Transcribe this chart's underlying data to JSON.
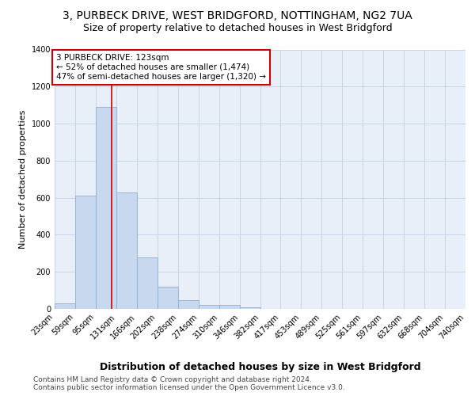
{
  "title1": "3, PURBECK DRIVE, WEST BRIDGFORD, NOTTINGHAM, NG2 7UA",
  "title2": "Size of property relative to detached houses in West Bridgford",
  "xlabel": "Distribution of detached houses by size in West Bridgford",
  "ylabel": "Number of detached properties",
  "bin_labels": [
    "23sqm",
    "59sqm",
    "95sqm",
    "131sqm",
    "166sqm",
    "202sqm",
    "238sqm",
    "274sqm",
    "310sqm",
    "346sqm",
    "382sqm",
    "417sqm",
    "453sqm",
    "489sqm",
    "525sqm",
    "561sqm",
    "597sqm",
    "632sqm",
    "668sqm",
    "704sqm",
    "740sqm"
  ],
  "bin_edges": [
    23,
    59,
    95,
    131,
    166,
    202,
    238,
    274,
    310,
    346,
    382,
    417,
    453,
    489,
    525,
    561,
    597,
    632,
    668,
    704,
    740
  ],
  "bar_heights": [
    30,
    610,
    1090,
    630,
    280,
    120,
    45,
    20,
    20,
    10,
    0,
    0,
    0,
    0,
    0,
    0,
    0,
    0,
    0,
    0
  ],
  "bar_color": "#c8d8ee",
  "bar_edge_color": "#8ab0d4",
  "property_size": 123,
  "vline_color": "#cc0000",
  "annotation_line1": "3 PURBECK DRIVE: 123sqm",
  "annotation_line2": "← 52% of detached houses are smaller (1,474)",
  "annotation_line3": "47% of semi-detached houses are larger (1,320) →",
  "annotation_box_color": "#ffffff",
  "annotation_box_edge_color": "#cc0000",
  "ylim": [
    0,
    1400
  ],
  "yticks": [
    0,
    200,
    400,
    600,
    800,
    1000,
    1200,
    1400
  ],
  "grid_color": "#c8d4e8",
  "bg_color": "#e8eff8",
  "footer_text": "Contains HM Land Registry data © Crown copyright and database right 2024.\nContains public sector information licensed under the Open Government Licence v3.0.",
  "title1_fontsize": 10,
  "title2_fontsize": 9,
  "xlabel_fontsize": 9,
  "ylabel_fontsize": 8,
  "annotation_fontsize": 7.5,
  "tick_fontsize": 7,
  "footer_fontsize": 6.5
}
